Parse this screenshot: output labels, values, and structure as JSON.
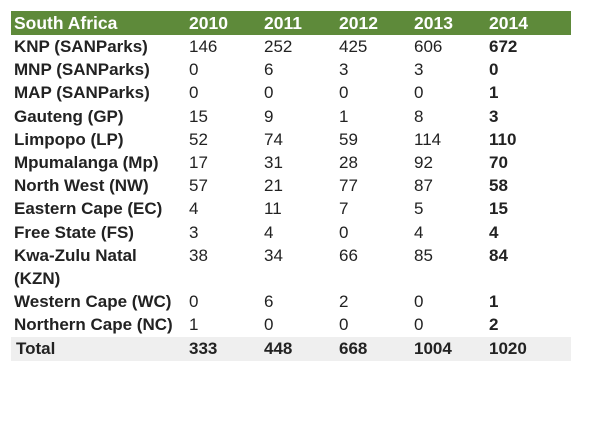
{
  "header": {
    "region": "South Africa",
    "years": [
      "2010",
      "2011",
      "2012",
      "2013",
      "2014"
    ]
  },
  "rows": [
    {
      "label": "KNP (SANParks)",
      "values": [
        "146",
        "252",
        "425",
        "606",
        "672"
      ]
    },
    {
      "label": "MNP (SANParks)",
      "values": [
        "0",
        "6",
        "3",
        "3",
        "0"
      ]
    },
    {
      "label": "MAP (SANParks)",
      "values": [
        "0",
        "0",
        "0",
        "0",
        "1"
      ]
    },
    {
      "label": "Gauteng (GP)",
      "values": [
        "15",
        "9",
        "1",
        "8",
        "3"
      ]
    },
    {
      "label": "Limpopo (LP)",
      "values": [
        "52",
        "74",
        "59",
        "114",
        "110"
      ]
    },
    {
      "label": "Mpumalanga (Mp)",
      "values": [
        "17",
        "31",
        "28",
        "92",
        "70"
      ]
    },
    {
      "label": "North West (NW)",
      "values": [
        "57",
        "21",
        "77",
        "87",
        "58"
      ]
    },
    {
      "label": "Eastern Cape (EC)",
      "values": [
        "4",
        "11",
        "7",
        "5",
        "15"
      ]
    },
    {
      "label": "Free State (FS)",
      "values": [
        "3",
        "4",
        "0",
        "4",
        "4"
      ]
    },
    {
      "label": "Kwa-Zulu Natal (KZN)",
      "values": [
        "38",
        "34",
        "66",
        "85",
        "84"
      ]
    },
    {
      "label": "Western Cape (WC)",
      "values": [
        "0",
        "6",
        "2",
        "0",
        "1"
      ]
    },
    {
      "label": "Northern Cape (NC)",
      "values": [
        "1",
        "0",
        "0",
        "0",
        "2"
      ]
    }
  ],
  "total": {
    "label": "Total",
    "values": [
      "333",
      "448",
      "668",
      "1004",
      "1020"
    ]
  },
  "colors": {
    "header_background": "#5e8a3a",
    "header_text": "#ffffff",
    "total_background": "#efefef"
  }
}
